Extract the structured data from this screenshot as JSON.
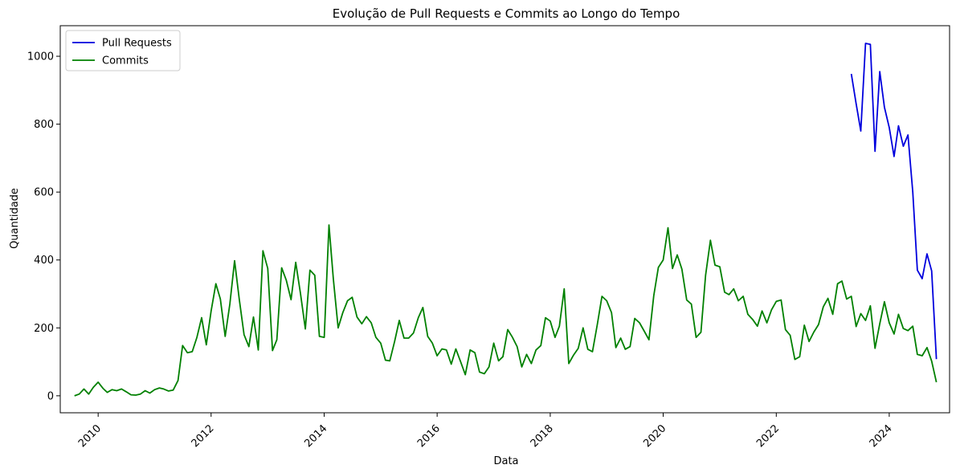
{
  "chart_data": {
    "type": "line",
    "title": "Evolução de Pull Requests e Commits ao Longo do Tempo",
    "xlabel": "Data",
    "ylabel": "Quantidade",
    "xlim": [
      "2009-05-01",
      "2025-01-25"
    ],
    "ylim": [
      -50,
      1090
    ],
    "x_ticks": [
      {
        "date": "2010-01-01",
        "label": "2010"
      },
      {
        "date": "2012-01-01",
        "label": "2012"
      },
      {
        "date": "2014-01-01",
        "label": "2014"
      },
      {
        "date": "2016-01-01",
        "label": "2016"
      },
      {
        "date": "2018-01-01",
        "label": "2018"
      },
      {
        "date": "2020-01-01",
        "label": "2020"
      },
      {
        "date": "2022-01-01",
        "label": "2022"
      },
      {
        "date": "2024-01-01",
        "label": "2024"
      }
    ],
    "y_ticks": [
      0,
      200,
      400,
      600,
      800,
      1000
    ],
    "grid": false,
    "legend_position": "top-left",
    "series": [
      {
        "name": "Pull Requests",
        "color": "#0000dd",
        "start": "2023-05",
        "values": [
          948,
          860,
          780,
          1038,
          1035,
          720,
          955,
          850,
          790,
          705,
          795,
          735,
          768,
          600,
          370,
          345,
          418,
          368,
          108
        ]
      },
      {
        "name": "Commits",
        "color": "#008000",
        "start": "2009-08",
        "values": [
          0,
          5,
          20,
          5,
          25,
          40,
          22,
          10,
          18,
          15,
          20,
          12,
          3,
          2,
          5,
          15,
          8,
          18,
          23,
          20,
          14,
          17,
          45,
          148,
          127,
          130,
          172,
          230,
          150,
          250,
          330,
          285,
          175,
          270,
          398,
          285,
          180,
          145,
          232,
          135,
          427,
          375,
          133,
          165,
          377,
          340,
          283,
          393,
          300,
          197,
          370,
          355,
          175,
          172,
          503,
          345,
          200,
          245,
          280,
          290,
          232,
          212,
          233,
          215,
          172,
          155,
          105,
          103,
          160,
          222,
          170,
          170,
          185,
          230,
          260,
          175,
          155,
          118,
          138,
          135,
          93,
          138,
          100,
          62,
          135,
          127,
          70,
          65,
          85,
          155,
          103,
          115,
          195,
          173,
          145,
          85,
          122,
          95,
          135,
          148,
          230,
          220,
          172,
          205,
          315,
          95,
          120,
          140,
          200,
          137,
          130,
          210,
          293,
          280,
          245,
          142,
          170,
          137,
          145,
          228,
          215,
          190,
          165,
          295,
          378,
          400,
          495,
          375,
          415,
          373,
          282,
          270,
          172,
          187,
          355,
          458,
          385,
          380,
          305,
          298,
          315,
          280,
          293,
          240,
          225,
          205,
          250,
          215,
          253,
          278,
          282,
          195,
          178,
          107,
          115,
          208,
          160,
          188,
          210,
          262,
          287,
          240,
          330,
          338,
          285,
          293,
          204,
          242,
          222,
          265,
          140,
          212,
          277,
          215,
          182,
          240,
          198,
          192,
          205,
          122,
          118,
          142,
          102,
          40
        ]
      }
    ]
  }
}
